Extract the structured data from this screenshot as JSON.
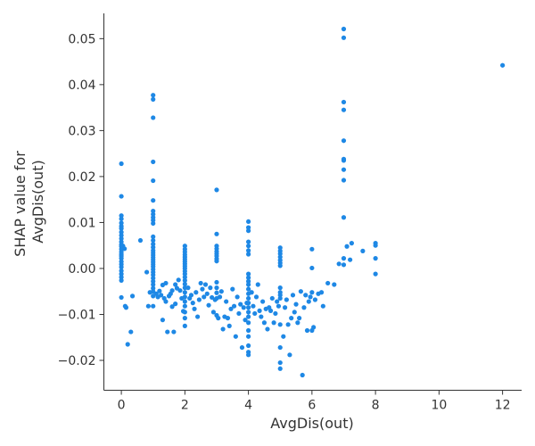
{
  "chart_data": {
    "type": "scatter",
    "title": "",
    "xlabel": "AvgDis(out)",
    "ylabel_lines": [
      "SHAP value for",
      "AvgDis(out)"
    ],
    "xlim": [
      -0.55,
      12.6
    ],
    "ylim": [
      -0.0265,
      0.0555
    ],
    "xticks": [
      0,
      2,
      4,
      6,
      8,
      10,
      12
    ],
    "yticks": [
      -0.02,
      -0.01,
      0.0,
      0.01,
      0.02,
      0.03,
      0.04,
      0.05
    ],
    "ytick_labels": [
      "−0.02",
      "−0.01",
      "0.00",
      "0.01",
      "0.02",
      "0.03",
      "0.04",
      "0.05"
    ],
    "grid": false,
    "point_color": "#1e88e5",
    "points": [
      [
        0,
        0.0228
      ],
      [
        0,
        0.0157
      ],
      [
        0,
        0.0115
      ],
      [
        0,
        0.0108
      ],
      [
        0,
        0.0099
      ],
      [
        0,
        0.0092
      ],
      [
        0,
        0.0087
      ],
      [
        0,
        0.0079
      ],
      [
        0,
        0.0072
      ],
      [
        0,
        0.0065
      ],
      [
        0,
        0.0058
      ],
      [
        0,
        0.0052
      ],
      [
        0,
        0.0048
      ],
      [
        0,
        0.0042
      ],
      [
        0,
        0.0036
      ],
      [
        0,
        0.0031
      ],
      [
        0,
        0.0027
      ],
      [
        0,
        0.0022
      ],
      [
        0,
        0.0015
      ],
      [
        0,
        0.0009
      ],
      [
        0,
        0.0003
      ],
      [
        0,
        -0.0005
      ],
      [
        0,
        -0.0012
      ],
      [
        0,
        -0.0019
      ],
      [
        0,
        -0.0026
      ],
      [
        0,
        -0.0063
      ],
      [
        0.05,
        0.0049
      ],
      [
        0.1,
        0.0043
      ],
      [
        0.12,
        -0.0082
      ],
      [
        0.15,
        -0.0085
      ],
      [
        0.2,
        -0.0165
      ],
      [
        0.3,
        -0.0138
      ],
      [
        0.35,
        -0.006
      ],
      [
        0.6,
        0.0061
      ],
      [
        0.8,
        -0.0008
      ],
      [
        0.9,
        -0.0052
      ],
      [
        0.85,
        -0.0082
      ],
      [
        1,
        0.0377
      ],
      [
        1,
        0.0368
      ],
      [
        1,
        0.0328
      ],
      [
        1,
        0.0232
      ],
      [
        1,
        0.0191
      ],
      [
        1,
        0.0148
      ],
      [
        1,
        0.0125
      ],
      [
        1,
        0.0118
      ],
      [
        1,
        0.0111
      ],
      [
        1,
        0.0105
      ],
      [
        1,
        0.0098
      ],
      [
        1,
        0.0069
      ],
      [
        1,
        0.0061
      ],
      [
        1,
        0.0053
      ],
      [
        1,
        0.0046
      ],
      [
        1,
        0.0039
      ],
      [
        1,
        0.0034
      ],
      [
        1,
        0.0029
      ],
      [
        1,
        0.0024
      ],
      [
        1,
        0.0019
      ],
      [
        1,
        0.0014
      ],
      [
        1,
        0.0009
      ],
      [
        1,
        0.0004
      ],
      [
        1,
        -0.0002
      ],
      [
        1,
        -0.0008
      ],
      [
        1,
        -0.0014
      ],
      [
        1,
        -0.0021
      ],
      [
        1,
        -0.0028
      ],
      [
        1,
        -0.0035
      ],
      [
        1,
        -0.0043
      ],
      [
        1,
        -0.005
      ],
      [
        1,
        -0.006
      ],
      [
        1,
        -0.0082
      ],
      [
        1.1,
        -0.0055
      ],
      [
        1.15,
        -0.0062
      ],
      [
        1.2,
        -0.0049
      ],
      [
        1.25,
        -0.0058
      ],
      [
        1.3,
        -0.0036
      ],
      [
        1.3,
        -0.0112
      ],
      [
        1.35,
        -0.0065
      ],
      [
        1.4,
        -0.0032
      ],
      [
        1.4,
        -0.0072
      ],
      [
        1.45,
        -0.0138
      ],
      [
        1.5,
        -0.006
      ],
      [
        1.55,
        -0.0055
      ],
      [
        1.6,
        -0.0083
      ],
      [
        1.6,
        -0.0048
      ],
      [
        1.65,
        -0.0138
      ],
      [
        1.7,
        -0.0035
      ],
      [
        1.7,
        -0.0077
      ],
      [
        1.75,
        -0.0043
      ],
      [
        1.8,
        -0.0025
      ],
      [
        1.85,
        -0.0048
      ],
      [
        1.9,
        -0.0065
      ],
      [
        1.95,
        -0.0093
      ],
      [
        2,
        0.0049
      ],
      [
        2,
        0.0042
      ],
      [
        2,
        0.0036
      ],
      [
        2,
        0.003
      ],
      [
        2,
        0.0025
      ],
      [
        2,
        0.002
      ],
      [
        2,
        0.0015
      ],
      [
        2,
        0.001
      ],
      [
        2,
        0.0005
      ],
      [
        2,
        0
      ],
      [
        2,
        -0.0006
      ],
      [
        2,
        -0.0012
      ],
      [
        2,
        -0.0019
      ],
      [
        2,
        -0.0026
      ],
      [
        2,
        -0.0034
      ],
      [
        2,
        -0.0042
      ],
      [
        2,
        -0.0052
      ],
      [
        2,
        -0.0062
      ],
      [
        2,
        -0.0072
      ],
      [
        2,
        -0.0082
      ],
      [
        2,
        -0.0095
      ],
      [
        2,
        -0.0108
      ],
      [
        2,
        -0.0125
      ],
      [
        2.1,
        -0.0042
      ],
      [
        2.15,
        -0.0065
      ],
      [
        2.2,
        -0.0058
      ],
      [
        2.25,
        -0.0075
      ],
      [
        2.3,
        -0.0088
      ],
      [
        2.35,
        -0.0052
      ],
      [
        2.4,
        -0.0105
      ],
      [
        2.45,
        -0.0068
      ],
      [
        2.5,
        -0.0032
      ],
      [
        2.55,
        -0.0045
      ],
      [
        2.6,
        -0.0062
      ],
      [
        2.65,
        -0.0035
      ],
      [
        2.7,
        -0.0055
      ],
      [
        2.75,
        -0.008
      ],
      [
        2.8,
        -0.0042
      ],
      [
        2.85,
        -0.0063
      ],
      [
        2.9,
        -0.0095
      ],
      [
        2.95,
        -0.0068
      ],
      [
        3,
        0.0171
      ],
      [
        3,
        0.0075
      ],
      [
        3,
        0.0049
      ],
      [
        3,
        0.0043
      ],
      [
        3,
        0.0037
      ],
      [
        3,
        0.0032
      ],
      [
        3,
        0.0027
      ],
      [
        3,
        0.0021
      ],
      [
        3,
        0.0016
      ],
      [
        3,
        -0.003
      ],
      [
        3,
        -0.0042
      ],
      [
        3,
        -0.0053
      ],
      [
        3,
        -0.0065
      ],
      [
        3,
        -0.0102
      ],
      [
        3.05,
        -0.0108
      ],
      [
        3.1,
        -0.0062
      ],
      [
        3.15,
        -0.005
      ],
      [
        3.2,
        -0.0132
      ],
      [
        3.25,
        -0.0105
      ],
      [
        3.3,
        -0.0072
      ],
      [
        3.35,
        -0.0108
      ],
      [
        3.4,
        -0.0125
      ],
      [
        3.45,
        -0.0088
      ],
      [
        3.5,
        -0.0045
      ],
      [
        3.55,
        -0.0082
      ],
      [
        3.6,
        -0.0148
      ],
      [
        3.65,
        -0.0062
      ],
      [
        3.7,
        -0.0098
      ],
      [
        3.75,
        -0.0078
      ],
      [
        3.8,
        -0.0172
      ],
      [
        3.85,
        -0.0085
      ],
      [
        3.9,
        -0.0112
      ],
      [
        3.95,
        -0.0075
      ],
      [
        4,
        0.0102
      ],
      [
        4,
        0.0089
      ],
      [
        4,
        0.0082
      ],
      [
        4,
        0.0058
      ],
      [
        4,
        0.0049
      ],
      [
        4,
        0.0039
      ],
      [
        4,
        0.0031
      ],
      [
        4,
        -0.0012
      ],
      [
        4,
        -0.002
      ],
      [
        4,
        -0.0028
      ],
      [
        4,
        -0.0035
      ],
      [
        4,
        -0.0045
      ],
      [
        4,
        -0.0055
      ],
      [
        4,
        -0.0065
      ],
      [
        4,
        -0.0075
      ],
      [
        4,
        -0.0085
      ],
      [
        4,
        -0.0095
      ],
      [
        4,
        -0.0105
      ],
      [
        4,
        -0.0118
      ],
      [
        4,
        -0.0135
      ],
      [
        4,
        -0.0148
      ],
      [
        4,
        -0.0168
      ],
      [
        4,
        -0.0182
      ],
      [
        4,
        -0.0188
      ],
      [
        4.1,
        -0.0052
      ],
      [
        4.15,
        -0.0082
      ],
      [
        4.2,
        -0.0098
      ],
      [
        4.25,
        -0.0062
      ],
      [
        4.3,
        -0.0035
      ],
      [
        4.35,
        -0.0092
      ],
      [
        4.4,
        -0.0105
      ],
      [
        4.45,
        -0.0072
      ],
      [
        4.5,
        -0.0118
      ],
      [
        4.55,
        -0.0088
      ],
      [
        4.6,
        -0.0132
      ],
      [
        4.65,
        -0.0085
      ],
      [
        4.7,
        -0.0092
      ],
      [
        4.75,
        -0.0065
      ],
      [
        4.8,
        -0.0118
      ],
      [
        4.85,
        -0.0098
      ],
      [
        4.9,
        -0.0072
      ],
      [
        4.95,
        -0.0082
      ],
      [
        5,
        0.0045
      ],
      [
        5,
        0.0038
      ],
      [
        5,
        0.0032
      ],
      [
        5,
        0.0025
      ],
      [
        5,
        0.0018
      ],
      [
        5,
        0.0012
      ],
      [
        5,
        0.0006
      ],
      [
        5,
        -0.0042
      ],
      [
        5,
        -0.0052
      ],
      [
        5,
        -0.0058
      ],
      [
        5,
        -0.0065
      ],
      [
        5,
        -0.0122
      ],
      [
        5,
        -0.0172
      ],
      [
        5,
        -0.0205
      ],
      [
        5,
        -0.0218
      ],
      [
        5.1,
        -0.0148
      ],
      [
        5.15,
        -0.0085
      ],
      [
        5.2,
        -0.0068
      ],
      [
        5.25,
        -0.0122
      ],
      [
        5.3,
        -0.0188
      ],
      [
        5.35,
        -0.0108
      ],
      [
        5.4,
        -0.0058
      ],
      [
        5.45,
        -0.0095
      ],
      [
        5.5,
        -0.0078
      ],
      [
        5.55,
        -0.0118
      ],
      [
        5.6,
        -0.0108
      ],
      [
        5.65,
        -0.005
      ],
      [
        5.7,
        -0.0232
      ],
      [
        5.75,
        -0.0085
      ],
      [
        5.8,
        -0.0058
      ],
      [
        5.85,
        -0.0135
      ],
      [
        5.9,
        -0.0072
      ],
      [
        5.95,
        -0.0062
      ],
      [
        6,
        0.0042
      ],
      [
        6,
        0.0001
      ],
      [
        6,
        -0.0052
      ],
      [
        6,
        -0.0135
      ],
      [
        6.05,
        -0.0128
      ],
      [
        6.1,
        -0.0068
      ],
      [
        6.2,
        -0.0055
      ],
      [
        6.3,
        -0.0052
      ],
      [
        6.35,
        -0.0082
      ],
      [
        6.5,
        -0.0032
      ],
      [
        6.7,
        -0.0035
      ],
      [
        6.85,
        0.001
      ],
      [
        7,
        0.0521
      ],
      [
        7,
        0.0502
      ],
      [
        7,
        0.0362
      ],
      [
        7,
        0.0345
      ],
      [
        7,
        0.0278
      ],
      [
        7,
        0.0238
      ],
      [
        7,
        0.0235
      ],
      [
        7,
        0.0215
      ],
      [
        7,
        0.0192
      ],
      [
        7,
        0.0111
      ],
      [
        7,
        0.0022
      ],
      [
        7,
        0.0008
      ],
      [
        7.1,
        0.0048
      ],
      [
        7.2,
        0.0019
      ],
      [
        7.25,
        0.0055
      ],
      [
        7.6,
        0.0038
      ],
      [
        8,
        0.0055
      ],
      [
        8,
        0.005
      ],
      [
        8,
        0.0022
      ],
      [
        8,
        -0.0012
      ],
      [
        12,
        0.0442
      ]
    ]
  }
}
